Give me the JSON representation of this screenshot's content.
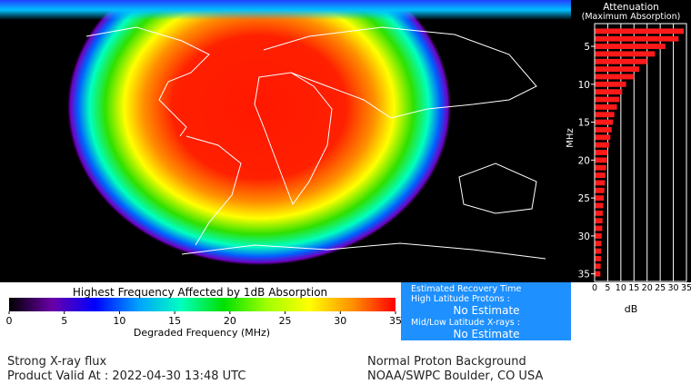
{
  "chart_data": {
    "type": "bar",
    "orientation": "horizontal",
    "title": "Attenuation",
    "subtitle": "(Maximum Absorption)",
    "x_label": "dB",
    "y_label": "MHz",
    "y": [
      3,
      4,
      5,
      6,
      7,
      8,
      9,
      10,
      11,
      12,
      13,
      14,
      15,
      16,
      17,
      18,
      19,
      20,
      21,
      22,
      23,
      24,
      25,
      26,
      27,
      28,
      29,
      30,
      31,
      32,
      33,
      34,
      35
    ],
    "values": [
      34,
      32,
      27,
      23,
      20,
      17,
      15,
      12,
      10.5,
      9.5,
      8.5,
      7.5,
      7,
      6.5,
      6,
      5.5,
      5,
      4.7,
      4.4,
      4.1,
      3.9,
      3.7,
      3.5,
      3.3,
      3.1,
      3,
      2.9,
      2.7,
      2.6,
      2.5,
      2.4,
      2.3,
      2.2
    ],
    "color": "#ff1a1a",
    "xlim": [
      0,
      35
    ],
    "xticks": [
      0,
      5,
      10,
      15,
      20,
      25,
      30,
      35
    ],
    "ylim": [
      2,
      36
    ],
    "yticks": [
      5,
      10,
      15,
      20,
      25,
      30,
      35
    ],
    "grid": true
  },
  "colorbar": {
    "title": "Highest Frequency Affected by 1dB Absorption",
    "label": "Degraded Frequency (MHz)",
    "lim": [
      0,
      35
    ],
    "ticks": [
      0,
      5,
      10,
      15,
      20,
      25,
      30,
      35
    ],
    "colors": [
      "#000000",
      "#6a00a8",
      "#0000ff",
      "#00a0ff",
      "#00ffc0",
      "#00e000",
      "#a0ff00",
      "#ffff00",
      "#ff9000",
      "#ff0000"
    ]
  },
  "info_panel": {
    "title": "Estimated Recovery Time",
    "lines": [
      "High Latitude Protons :",
      "No Estimate",
      "Mid/Low Latitude X-rays :",
      "No Estimate"
    ]
  },
  "footer": {
    "left": [
      "Strong X-ray flux",
      "Product Valid At : 2022-04-30 13:48 UTC"
    ],
    "right": [
      "Normal Proton Background",
      "NOAA/SWPC Boulder, CO USA"
    ]
  }
}
